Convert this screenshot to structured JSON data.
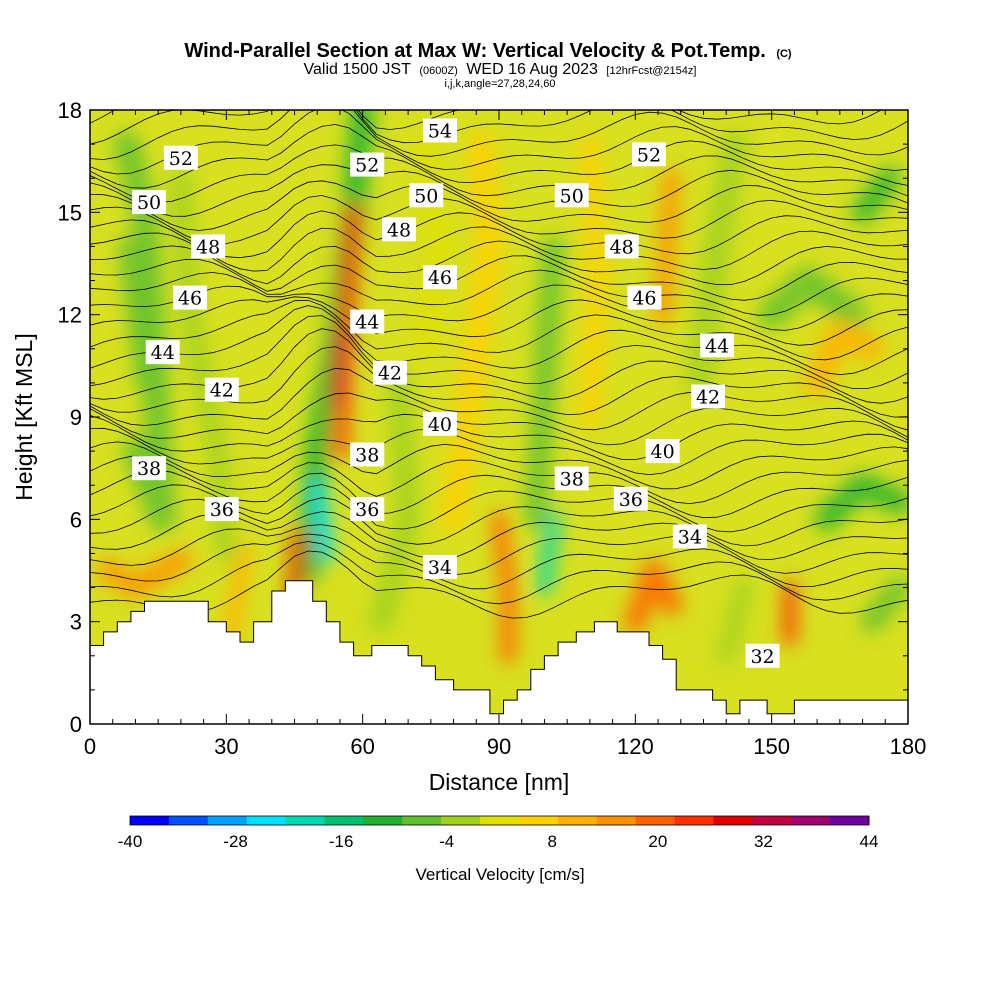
{
  "chart_data": {
    "type": "heatmap",
    "title": "Wind-Parallel Section at Max W: Vertical Velocity & Pot.Temp.",
    "title_mark": "(C)",
    "subtitle_parts": [
      "Valid 1500 JST",
      "(0600Z)",
      "WED 16 Aug 2023",
      "[12hrFcst@2154z]"
    ],
    "subtitle2": "i,j,k,angle=27,28,24,60",
    "xlabel": "Distance [nm]",
    "ylabel": "Height [Kft MSL]",
    "xlim": [
      0,
      180
    ],
    "ylim": [
      0,
      18
    ],
    "x_ticks": [
      "0",
      "30",
      "60",
      "90",
      "120",
      "150",
      "180"
    ],
    "y_ticks": [
      "0",
      "3",
      "6",
      "9",
      "12",
      "15",
      "18"
    ],
    "colorbar": {
      "title": "Vertical Velocity [cm/s]",
      "tick_labels": [
        "-40",
        "-28",
        "-16",
        "-4",
        "8",
        "20",
        "32",
        "44"
      ],
      "colors": [
        "#0000ff",
        "#0050ff",
        "#00a0ff",
        "#00e0ff",
        "#00d8b0",
        "#00c070",
        "#20b030",
        "#60c030",
        "#a0d020",
        "#e0e000",
        "#ffd000",
        "#ffb000",
        "#ff9000",
        "#ff6000",
        "#ff3000",
        "#e00000",
        "#c00040",
        "#a00070",
        "#7000a0"
      ],
      "range": [
        -40,
        44
      ]
    },
    "contour_labels": [
      {
        "text": "54",
        "x": 77,
        "y": 17.4
      },
      {
        "text": "52",
        "x": 20,
        "y": 16.6
      },
      {
        "text": "52",
        "x": 61,
        "y": 16.4
      },
      {
        "text": "52",
        "x": 123,
        "y": 16.7
      },
      {
        "text": "50",
        "x": 13,
        "y": 15.3
      },
      {
        "text": "50",
        "x": 74,
        "y": 15.5
      },
      {
        "text": "50",
        "x": 106,
        "y": 15.5
      },
      {
        "text": "48",
        "x": 26,
        "y": 14.0
      },
      {
        "text": "48",
        "x": 68,
        "y": 14.5
      },
      {
        "text": "48",
        "x": 117,
        "y": 14.0
      },
      {
        "text": "46",
        "x": 22,
        "y": 12.5
      },
      {
        "text": "46",
        "x": 77,
        "y": 13.1
      },
      {
        "text": "46",
        "x": 122,
        "y": 12.5
      },
      {
        "text": "44",
        "x": 16,
        "y": 10.9
      },
      {
        "text": "44",
        "x": 61,
        "y": 11.8
      },
      {
        "text": "44",
        "x": 138,
        "y": 11.1
      },
      {
        "text": "42",
        "x": 29,
        "y": 9.8
      },
      {
        "text": "42",
        "x": 66,
        "y": 10.3
      },
      {
        "text": "42",
        "x": 136,
        "y": 9.6
      },
      {
        "text": "40",
        "x": 77,
        "y": 8.8
      },
      {
        "text": "40",
        "x": 126,
        "y": 8.0
      },
      {
        "text": "38",
        "x": 13,
        "y": 7.5
      },
      {
        "text": "38",
        "x": 61,
        "y": 7.9
      },
      {
        "text": "38",
        "x": 106,
        "y": 7.2
      },
      {
        "text": "36",
        "x": 29,
        "y": 6.3
      },
      {
        "text": "36",
        "x": 61,
        "y": 6.3
      },
      {
        "text": "36",
        "x": 119,
        "y": 6.6
      },
      {
        "text": "34",
        "x": 77,
        "y": 4.6
      },
      {
        "text": "34",
        "x": 132,
        "y": 5.5
      },
      {
        "text": "32",
        "x": 148,
        "y": 2.0
      }
    ],
    "terrain": {
      "x": [
        0,
        3,
        3,
        6,
        6,
        9,
        9,
        12,
        12,
        26,
        26,
        30,
        30,
        33,
        33,
        36,
        36,
        40,
        40,
        43,
        43,
        49,
        49,
        52,
        52,
        55,
        55,
        58,
        58,
        62,
        62,
        70,
        70,
        73,
        73,
        76,
        76,
        80,
        80,
        88,
        88,
        91,
        91,
        94,
        94,
        97,
        97,
        100,
        100,
        103,
        103,
        107,
        107,
        111,
        111,
        116,
        116,
        123,
        123,
        126,
        126,
        129,
        129,
        137,
        137,
        140,
        140,
        143,
        143,
        149,
        149,
        155,
        155,
        168,
        168,
        180
      ],
      "y": [
        2.3,
        2.3,
        2.7,
        2.7,
        3.0,
        3.0,
        3.3,
        3.3,
        3.6,
        3.6,
        3.0,
        3.0,
        2.7,
        2.7,
        2.4,
        2.4,
        3.0,
        3.0,
        3.9,
        3.9,
        4.2,
        4.2,
        3.6,
        3.6,
        3.0,
        3.0,
        2.4,
        2.4,
        2.0,
        2.0,
        2.3,
        2.3,
        2.0,
        2.0,
        1.7,
        1.7,
        1.3,
        1.3,
        1.0,
        1.0,
        0.3,
        0.3,
        0.7,
        0.7,
        1.0,
        1.0,
        1.6,
        1.6,
        2.0,
        2.0,
        2.4,
        2.4,
        2.7,
        2.7,
        3.0,
        3.0,
        2.7,
        2.7,
        2.3,
        2.3,
        1.9,
        1.9,
        1.0,
        1.0,
        0.7,
        0.7,
        0.3,
        0.3,
        0.7,
        0.7,
        0.3,
        0.3,
        0.7,
        0.7,
        0.7,
        0.7
      ]
    }
  }
}
